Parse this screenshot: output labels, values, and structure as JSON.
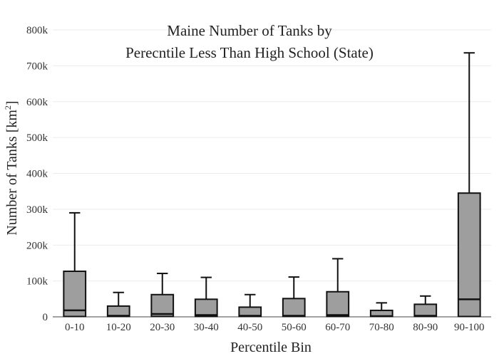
{
  "chart_data": {
    "type": "box",
    "title_line1": "Maine Number of Tanks by",
    "title_line2": "Perecntile Less Than High School (State)",
    "xlabel": "Percentile Bin",
    "ylabel_main": "Number of Tanks  [km",
    "ylabel_sup": "2",
    "ylabel_close": "]",
    "ylim": [
      0,
      800000
    ],
    "yticks": [
      0,
      100000,
      200000,
      300000,
      400000,
      500000,
      600000,
      700000,
      800000
    ],
    "ytick_labels": [
      "0",
      "100k",
      "200k",
      "300k",
      "400k",
      "500k",
      "600k",
      "700k",
      "800k"
    ],
    "grid": true,
    "colors": {
      "box_fill": "#9e9e9e",
      "box_stroke": "#111111"
    },
    "categories": [
      "0-10",
      "10-20",
      "20-30",
      "30-40",
      "40-50",
      "50-60",
      "60-70",
      "70-80",
      "80-90",
      "90-100"
    ],
    "boxes": [
      {
        "min": 0,
        "q1": 1000,
        "median": 18000,
        "q3": 127000,
        "max": 290000
      },
      {
        "min": 0,
        "q1": 1000,
        "median": 3000,
        "q3": 30000,
        "max": 68000
      },
      {
        "min": 0,
        "q1": 1000,
        "median": 8000,
        "q3": 62000,
        "max": 121000
      },
      {
        "min": 0,
        "q1": 1000,
        "median": 5000,
        "q3": 49000,
        "max": 110000
      },
      {
        "min": 0,
        "q1": 1000,
        "median": 3000,
        "q3": 27000,
        "max": 62000
      },
      {
        "min": 0,
        "q1": 1000,
        "median": 3000,
        "q3": 51000,
        "max": 111000
      },
      {
        "min": 0,
        "q1": 1000,
        "median": 5000,
        "q3": 70000,
        "max": 162000
      },
      {
        "min": 0,
        "q1": 1000,
        "median": 2000,
        "q3": 18000,
        "max": 39000
      },
      {
        "min": 0,
        "q1": 1000,
        "median": 3000,
        "q3": 35000,
        "max": 58000
      },
      {
        "min": 0,
        "q1": 1000,
        "median": 49000,
        "q3": 345000,
        "max": 736000
      }
    ]
  }
}
